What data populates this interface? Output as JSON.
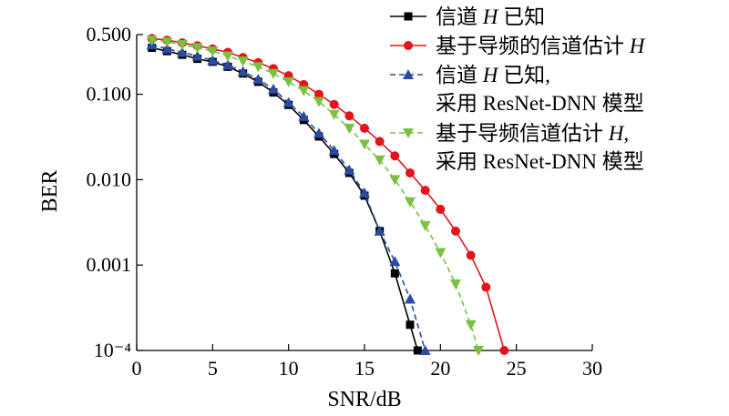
{
  "chart_data": {
    "type": "line",
    "xlabel": "SNR/dB",
    "ylabel": "BER",
    "xlim": [
      0,
      30
    ],
    "ylim": [
      0.0001,
      0.5
    ],
    "yscale": "log",
    "grid": false,
    "legend_position": "top-right",
    "x_ticks": [
      0,
      5,
      10,
      15,
      20,
      25,
      30
    ],
    "x_tick_labels": [
      "0",
      "5",
      "10",
      "15",
      "20",
      "25",
      "30"
    ],
    "y_ticks": [
      0.5,
      0.1,
      0.01,
      0.001,
      0.0001
    ],
    "y_tick_labels": [
      "0.500",
      "0.100",
      "0.010",
      "0.001",
      "10⁻⁴"
    ],
    "series": [
      {
        "name": "信道 H 已知",
        "color": "#000000",
        "marker": "square",
        "dash": "solid",
        "x": [
          1,
          2,
          3,
          4,
          5,
          6,
          7,
          8,
          9,
          10,
          11,
          12,
          13,
          14,
          15,
          16,
          17,
          18,
          18.5
        ],
        "y": [
          0.35,
          0.32,
          0.29,
          0.26,
          0.24,
          0.21,
          0.175,
          0.14,
          0.105,
          0.075,
          0.05,
          0.032,
          0.02,
          0.012,
          0.0065,
          0.0025,
          0.0008,
          0.0002,
          0.0001
        ]
      },
      {
        "name": "基于导频的信道估计 H",
        "color": "#e3151a",
        "marker": "circle",
        "dash": "solid",
        "x": [
          1,
          2,
          3,
          4,
          5,
          6,
          7,
          8,
          9,
          10,
          11,
          12,
          13,
          14,
          15,
          16,
          17,
          18,
          19,
          20,
          21,
          22,
          23,
          24.2
        ],
        "y": [
          0.45,
          0.43,
          0.4,
          0.37,
          0.34,
          0.31,
          0.27,
          0.235,
          0.2,
          0.165,
          0.13,
          0.1,
          0.076,
          0.056,
          0.04,
          0.028,
          0.019,
          0.012,
          0.0075,
          0.0045,
          0.0025,
          0.0013,
          0.00055,
          0.0001
        ]
      },
      {
        "name": "信道 H 已知, 采用 ResNet-DNN 模型",
        "color": "#2a4ba0",
        "marker": "triangle-up",
        "dash": "dashed",
        "x": [
          1,
          2,
          3,
          4,
          5,
          6,
          7,
          8,
          9,
          10,
          11,
          12,
          13,
          14,
          15,
          16,
          17,
          18,
          19
        ],
        "y": [
          0.38,
          0.34,
          0.31,
          0.28,
          0.25,
          0.22,
          0.185,
          0.15,
          0.115,
          0.08,
          0.055,
          0.035,
          0.022,
          0.013,
          0.007,
          0.0025,
          0.0011,
          0.0004,
          0.0001
        ]
      },
      {
        "name": "基于导频信道估计 H, 采用 ResNet-DNN 模型",
        "color": "#7ac142",
        "marker": "triangle-down",
        "dash": "dashed",
        "x": [
          1,
          2,
          3,
          4,
          5,
          6,
          7,
          8,
          9,
          10,
          11,
          12,
          13,
          14,
          15,
          16,
          17,
          18,
          19,
          20,
          21,
          22,
          22.5
        ],
        "y": [
          0.43,
          0.41,
          0.38,
          0.35,
          0.32,
          0.28,
          0.245,
          0.21,
          0.175,
          0.14,
          0.11,
          0.082,
          0.058,
          0.04,
          0.026,
          0.017,
          0.01,
          0.0055,
          0.0029,
          0.0014,
          0.0006,
          0.0002,
          0.0001
        ]
      }
    ],
    "legend": [
      {
        "lines": [
          "信道 H 已知"
        ],
        "italic_word": "H"
      },
      {
        "lines": [
          "基于导频的信道估计 H"
        ],
        "italic_word": "H"
      },
      {
        "lines": [
          "信道 H 已知,",
          "采用 ResNet-DNN 模型"
        ],
        "italic_word": "H"
      },
      {
        "lines": [
          "基于导频信道估计 H,",
          "采用 ResNet-DNN 模型"
        ],
        "italic_word": "H"
      }
    ]
  }
}
